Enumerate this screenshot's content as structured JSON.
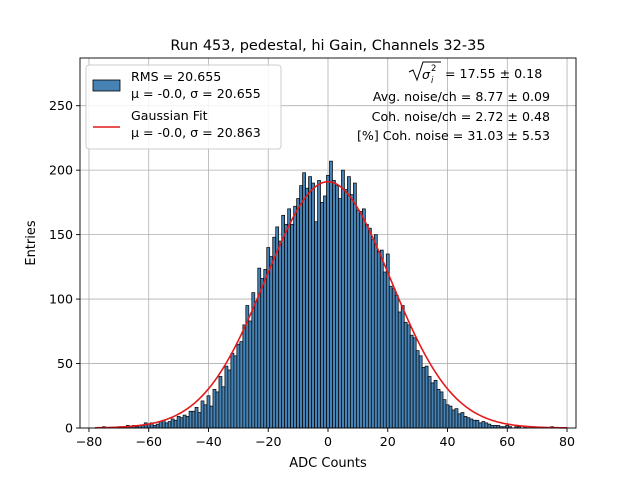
{
  "chart_data": {
    "type": "bar",
    "title": "Run 453, pedestal, hi Gain, Channels 32-35",
    "xlabel": "ADC Counts",
    "ylabel": "Entries",
    "xlim": [
      -83,
      83
    ],
    "ylim": [
      0,
      287
    ],
    "grid": true,
    "legend_placement": "top-left",
    "x_ticks": [
      -80,
      -60,
      -40,
      -20,
      0,
      20,
      40,
      60,
      80
    ],
    "y_ticks": [
      0,
      50,
      100,
      150,
      200,
      250
    ],
    "legend": [
      {
        "kind": "patch",
        "line1": "RMS = 20.655",
        "line2": "μ = -0.0, σ = 20.655"
      },
      {
        "kind": "line",
        "line1": "Gaussian Fit",
        "line2": "μ = -0.0, σ = 20.863"
      }
    ],
    "stats": {
      "sqrt_label": "σ",
      "sqrt_sup": "2",
      "sqrt_sub": "i",
      "sqrt_value": " = 17.55 ± 0.18",
      "lines": [
        "Avg. noise/ch = 8.77 ± 0.09",
        "Coh. noise/ch = 2.72 ± 0.48",
        "[%] Coh. noise = 31.03 ± 5.53"
      ]
    },
    "histogram": {
      "name": "RMS = 20.655",
      "bin_width": 1,
      "bins": [
        [
          -75,
          1
        ],
        [
          -74,
          0
        ],
        [
          -73,
          0
        ],
        [
          -72,
          0
        ],
        [
          -71,
          0
        ],
        [
          -70,
          1
        ],
        [
          -69,
          1
        ],
        [
          -68,
          1
        ],
        [
          -67,
          2
        ],
        [
          -66,
          1
        ],
        [
          -65,
          2
        ],
        [
          -64,
          1
        ],
        [
          -63,
          2
        ],
        [
          -62,
          2
        ],
        [
          -61,
          4
        ],
        [
          -60,
          3
        ],
        [
          -59,
          4
        ],
        [
          -58,
          2
        ],
        [
          -57,
          3
        ],
        [
          -56,
          5
        ],
        [
          -55,
          6
        ],
        [
          -54,
          4
        ],
        [
          -53,
          5
        ],
        [
          -52,
          7
        ],
        [
          -51,
          6
        ],
        [
          -50,
          9
        ],
        [
          -49,
          8
        ],
        [
          -48,
          10
        ],
        [
          -47,
          9
        ],
        [
          -46,
          13
        ],
        [
          -45,
          13
        ],
        [
          -44,
          16
        ],
        [
          -43,
          12
        ],
        [
          -42,
          21
        ],
        [
          -41,
          18
        ],
        [
          -40,
          25
        ],
        [
          -39,
          17
        ],
        [
          -38,
          30
        ],
        [
          -37,
          28
        ],
        [
          -36,
          40
        ],
        [
          -35,
          32
        ],
        [
          -34,
          48
        ],
        [
          -33,
          45
        ],
        [
          -32,
          58
        ],
        [
          -31,
          56
        ],
        [
          -30,
          65
        ],
        [
          -29,
          67
        ],
        [
          -28,
          80
        ],
        [
          -27,
          95
        ],
        [
          -26,
          83
        ],
        [
          -25,
          105
        ],
        [
          -24,
          98
        ],
        [
          -23,
          124
        ],
        [
          -22,
          116
        ],
        [
          -21,
          123
        ],
        [
          -20,
          140
        ],
        [
          -19,
          133
        ],
        [
          -18,
          148
        ],
        [
          -17,
          156
        ],
        [
          -16,
          145
        ],
        [
          -15,
          165
        ],
        [
          -14,
          158
        ],
        [
          -13,
          170
        ],
        [
          -12,
          158
        ],
        [
          -11,
          172
        ],
        [
          -10,
          178
        ],
        [
          -9,
          188
        ],
        [
          -8,
          198
        ],
        [
          -7,
          186
        ],
        [
          -6,
          195
        ],
        [
          -5,
          190
        ],
        [
          -4,
          160
        ],
        [
          -3,
          192
        ],
        [
          -2,
          175
        ],
        [
          -1,
          180
        ],
        [
          0,
          196
        ],
        [
          1,
          207
        ],
        [
          2,
          192
        ],
        [
          3,
          188
        ],
        [
          4,
          178
        ],
        [
          5,
          200
        ],
        [
          6,
          185
        ],
        [
          7,
          195
        ],
        [
          8,
          181
        ],
        [
          9,
          190
        ],
        [
          10,
          169
        ],
        [
          11,
          168
        ],
        [
          12,
          170
        ],
        [
          13,
          158
        ],
        [
          14,
          155
        ],
        [
          15,
          146
        ],
        [
          16,
          150
        ],
        [
          17,
          137
        ],
        [
          18,
          138
        ],
        [
          19,
          121
        ],
        [
          20,
          135
        ],
        [
          21,
          110
        ],
        [
          22,
          108
        ],
        [
          23,
          103
        ],
        [
          24,
          90
        ],
        [
          25,
          95
        ],
        [
          26,
          82
        ],
        [
          27,
          80
        ],
        [
          28,
          72
        ],
        [
          29,
          70
        ],
        [
          30,
          60
        ],
        [
          31,
          56
        ],
        [
          32,
          47
        ],
        [
          33,
          48
        ],
        [
          34,
          40
        ],
        [
          35,
          35
        ],
        [
          36,
          37
        ],
        [
          37,
          30
        ],
        [
          38,
          28
        ],
        [
          39,
          22
        ],
        [
          40,
          18
        ],
        [
          41,
          17
        ],
        [
          42,
          14
        ],
        [
          43,
          15
        ],
        [
          44,
          11
        ],
        [
          45,
          12
        ],
        [
          46,
          9
        ],
        [
          47,
          8
        ],
        [
          48,
          7
        ],
        [
          49,
          6
        ],
        [
          50,
          6
        ],
        [
          51,
          4
        ],
        [
          52,
          5
        ],
        [
          53,
          4
        ],
        [
          54,
          3
        ],
        [
          55,
          2
        ],
        [
          56,
          2
        ],
        [
          57,
          2
        ],
        [
          58,
          1
        ],
        [
          59,
          1
        ],
        [
          60,
          2
        ],
        [
          61,
          1
        ],
        [
          62,
          0
        ],
        [
          63,
          1
        ],
        [
          64,
          1
        ],
        [
          65,
          0
        ],
        [
          66,
          1
        ],
        [
          67,
          0
        ],
        [
          68,
          0
        ],
        [
          69,
          0
        ],
        [
          70,
          0
        ],
        [
          71,
          0
        ],
        [
          72,
          0
        ],
        [
          73,
          0
        ],
        [
          74,
          0
        ],
        [
          75,
          1
        ]
      ]
    },
    "fit": {
      "name": "Gaussian Fit",
      "type": "gaussian",
      "mu": 0.0,
      "sigma": 20.863,
      "amplitude": 191,
      "x_range": [
        -78,
        80
      ]
    },
    "colors": {
      "bar_fill": "#4682b4",
      "bar_edge": "#000000",
      "fit_line": "#e41a1c",
      "grid": "#b0b0b0"
    }
  }
}
